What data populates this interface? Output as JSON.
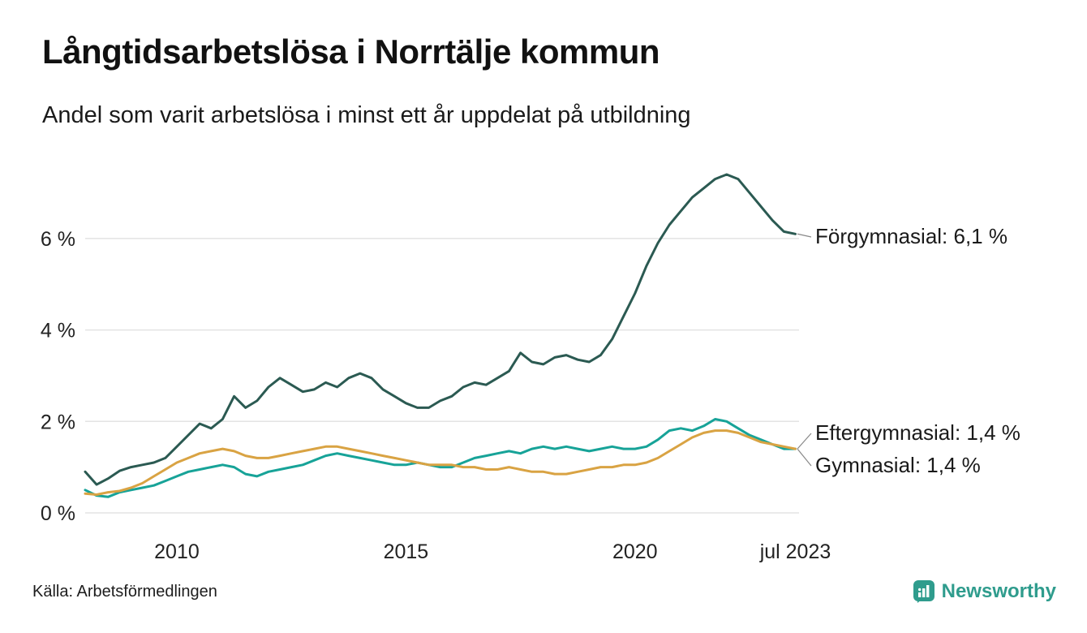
{
  "header": {
    "title": "Långtidsarbetslösa i Norrtälje kommun",
    "subtitle": "Andel som varit arbetslösa i minst ett år uppdelat på utbildning"
  },
  "footer": {
    "source": "Källa: Arbetsförmedlingen",
    "brand": "Newsworthy"
  },
  "colors": {
    "forgymnasial": "#2b5a52",
    "eftergymnasial": "#17a398",
    "gymnasial": "#d9a343",
    "grid": "#e3e3e3",
    "axis_text": "#222222",
    "annotation_text": "#1a1a1a",
    "brand_teal": "#2f9c8d"
  },
  "chart_data": {
    "type": "line",
    "title": "Långtidsarbetslösa i Norrtälje kommun",
    "subtitle": "Andel som varit arbetslösa i minst ett år uppdelat på utbildning",
    "xlabel": "",
    "ylabel": "",
    "x_domain": [
      2008,
      2023.6
    ],
    "y_domain": [
      0,
      7.9
    ],
    "grid": "horizontal",
    "legend_position": "right-annotations",
    "x_start": 2008,
    "x_step": 0.25,
    "x_ticks": [
      {
        "value": 2010,
        "label": "2010"
      },
      {
        "value": 2015,
        "label": "2015"
      },
      {
        "value": 2020,
        "label": "2020"
      },
      {
        "value": 2023.5,
        "label": "jul 2023"
      }
    ],
    "y_ticks": [
      {
        "value": 0,
        "label": "0 %"
      },
      {
        "value": 2,
        "label": "2 %"
      },
      {
        "value": 4,
        "label": "4 %"
      },
      {
        "value": 6,
        "label": "6 %"
      }
    ],
    "series": [
      {
        "name": "Förgymnasial",
        "color": "#2b5a52",
        "annotation": "Förgymnasial: 6,1 %",
        "last_value": 6.1,
        "values": [
          0.9,
          0.62,
          0.75,
          0.92,
          1.0,
          1.05,
          1.1,
          1.2,
          1.45,
          1.7,
          1.95,
          1.85,
          2.05,
          2.55,
          2.3,
          2.45,
          2.75,
          2.95,
          2.8,
          2.65,
          2.7,
          2.85,
          2.75,
          2.95,
          3.05,
          2.95,
          2.7,
          2.55,
          2.4,
          2.3,
          2.3,
          2.45,
          2.55,
          2.75,
          2.85,
          2.8,
          2.95,
          3.1,
          3.5,
          3.3,
          3.25,
          3.4,
          3.45,
          3.35,
          3.3,
          3.45,
          3.8,
          4.3,
          4.8,
          5.4,
          5.9,
          6.3,
          6.6,
          6.9,
          7.1,
          7.3,
          7.4,
          7.3,
          7.0,
          6.7,
          6.4,
          6.15,
          6.1
        ]
      },
      {
        "name": "Eftergymnasial",
        "color": "#17a398",
        "annotation": "Eftergymnasial: 1,4 %",
        "last_value": 1.4,
        "values": [
          0.5,
          0.38,
          0.35,
          0.45,
          0.5,
          0.55,
          0.6,
          0.7,
          0.8,
          0.9,
          0.95,
          1.0,
          1.05,
          1.0,
          0.85,
          0.8,
          0.9,
          0.95,
          1.0,
          1.05,
          1.15,
          1.25,
          1.3,
          1.25,
          1.2,
          1.15,
          1.1,
          1.05,
          1.05,
          1.1,
          1.05,
          1.0,
          1.0,
          1.1,
          1.2,
          1.25,
          1.3,
          1.35,
          1.3,
          1.4,
          1.45,
          1.4,
          1.45,
          1.4,
          1.35,
          1.4,
          1.45,
          1.4,
          1.4,
          1.45,
          1.6,
          1.8,
          1.85,
          1.8,
          1.9,
          2.05,
          2.0,
          1.85,
          1.7,
          1.6,
          1.5,
          1.4,
          1.4
        ]
      },
      {
        "name": "Gymnasial",
        "color": "#d9a343",
        "annotation": "Gymnasial: 1,4 %",
        "last_value": 1.4,
        "values": [
          0.42,
          0.4,
          0.45,
          0.48,
          0.55,
          0.65,
          0.8,
          0.95,
          1.1,
          1.2,
          1.3,
          1.35,
          1.4,
          1.35,
          1.25,
          1.2,
          1.2,
          1.25,
          1.3,
          1.35,
          1.4,
          1.45,
          1.45,
          1.4,
          1.35,
          1.3,
          1.25,
          1.2,
          1.15,
          1.1,
          1.05,
          1.05,
          1.05,
          1.0,
          1.0,
          0.95,
          0.95,
          1.0,
          0.95,
          0.9,
          0.9,
          0.85,
          0.85,
          0.9,
          0.95,
          1.0,
          1.0,
          1.05,
          1.05,
          1.1,
          1.2,
          1.35,
          1.5,
          1.65,
          1.75,
          1.8,
          1.8,
          1.75,
          1.65,
          1.55,
          1.5,
          1.45,
          1.4
        ]
      }
    ]
  }
}
